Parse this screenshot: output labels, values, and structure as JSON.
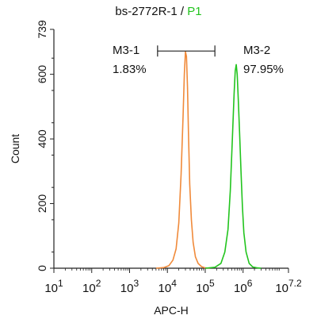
{
  "chart_data": {
    "type": "line",
    "title": "bs-2772R-1",
    "title_separator": " / ",
    "title_gate": "P1",
    "title_gate_color": "#22c41e",
    "xlabel": "APC-H",
    "ylabel": "Count",
    "x_scale": "log10",
    "xlim": [
      10,
      15848932
    ],
    "ylim": [
      0,
      739
    ],
    "x_ticks": [
      {
        "value": 10,
        "base": "10",
        "exp": "1"
      },
      {
        "value": 100,
        "base": "10",
        "exp": "2"
      },
      {
        "value": 1000,
        "base": "10",
        "exp": "3"
      },
      {
        "value": 10000,
        "base": "10",
        "exp": "4"
      },
      {
        "value": 100000,
        "base": "10",
        "exp": "5"
      },
      {
        "value": 1000000,
        "base": "10",
        "exp": "6"
      },
      {
        "value": 15848932,
        "base": "10",
        "exp": "7.2"
      }
    ],
    "y_ticks": [
      0,
      200,
      400,
      600,
      739
    ],
    "gridlines": false,
    "series": [
      {
        "color": "#f08a3a",
        "x": [
          5000,
          8000,
          11000,
          14000,
          17000,
          20000,
          23000,
          26000,
          28000,
          30000,
          32000,
          34000,
          36000,
          39000,
          43000,
          48000,
          55000,
          65000,
          80000,
          100000,
          130000
        ],
        "y": [
          0,
          2,
          8,
          25,
          60,
          140,
          290,
          470,
          600,
          670,
          655,
          560,
          420,
          260,
          150,
          80,
          35,
          15,
          5,
          1,
          0
        ]
      },
      {
        "color": "#22c41e",
        "x": [
          100000,
          180000,
          260000,
          330000,
          400000,
          460000,
          520000,
          580000,
          620000,
          660000,
          700000,
          750000,
          810000,
          880000,
          960000,
          1050000,
          1200000,
          1450000,
          1800000,
          2400000,
          3000000
        ],
        "y": [
          0,
          3,
          15,
          50,
          120,
          240,
          400,
          540,
          610,
          630,
          600,
          520,
          420,
          300,
          190,
          110,
          50,
          15,
          4,
          1,
          0
        ]
      }
    ],
    "markers": [
      {
        "label": "M3-1",
        "percent": "1.83%",
        "x_start": 5500,
        "x_end": 180000
      },
      {
        "label": "M3-2",
        "percent": "97.95%",
        "x_start": 180000,
        "x_end": 15848932
      }
    ],
    "marker_bar": {
      "y": 672,
      "x_start": 5500,
      "x_mid": 180000
    }
  }
}
